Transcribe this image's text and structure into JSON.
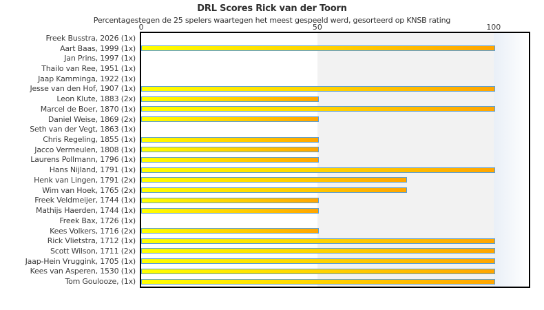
{
  "title": "DRL Scores Rick van der Toorn",
  "subtitle": "Percentagestegen de 25 spelers waartegen het meest gespeeld werd, gesorteerd op KNSB rating",
  "chart_data": {
    "type": "bar",
    "orientation": "horizontal",
    "title": "DRL Scores Rick van der Toorn",
    "subtitle": "Percentagestegen de 25 spelers waartegen het meest gespeeld werd, gesorteerd op KNSB rating",
    "xlabel": "",
    "ylabel": "",
    "xlim": [
      0,
      110
    ],
    "x_ticks": [
      0,
      50,
      100
    ],
    "grid": "off",
    "legend": "none",
    "categories": [
      "Freek Busstra, 2026 (1x)",
      "Aart Baas, 1999 (1x)",
      "Jan Prins, 1997 (1x)",
      "Thailo van Ree, 1951 (1x)",
      "Jaap Kamminga, 1922 (1x)",
      "Jesse van den Hof, 1907 (1x)",
      "Leon Klute, 1883 (2x)",
      "Marcel de Boer, 1870 (1x)",
      "Daniel Weise, 1869 (2x)",
      "Seth van der Vegt, 1863 (1x)",
      "Chris Regeling, 1855 (1x)",
      "Jacco Vermeulen, 1808 (1x)",
      "Laurens Pollmann, 1796 (1x)",
      "Hans Nijland, 1791 (1x)",
      "Henk van Lingen, 1791 (2x)",
      "Wim van Hoek, 1765 (2x)",
      "Freek Veldmeijer, 1744 (1x)",
      "Mathijs Haerden, 1744 (1x)",
      "Freek Bax, 1726 (1x)",
      "Kees Volkers, 1716 (2x)",
      "Rick Vlietstra, 1712 (1x)",
      "Scott Wilson, 1711 (2x)",
      "Jaap-Hein Vruggink, 1705 (1x)",
      "Kees van Asperen, 1530 (1x)",
      "Tom Goulooze,  (1x)"
    ],
    "values": [
      0,
      100,
      0,
      0,
      0,
      100,
      50,
      100,
      50,
      0,
      50,
      50,
      50,
      100,
      75,
      75,
      50,
      50,
      0,
      50,
      100,
      100,
      100,
      100,
      100
    ],
    "bar_gradient": [
      "#ffff00",
      "#ffd400",
      "#ffa500"
    ],
    "bar_border_color": "#5b9fd6",
    "bands": [
      {
        "from": 50,
        "to": 100,
        "type": "solid",
        "color": "#f2f2f2"
      },
      {
        "from": 100,
        "to": 110,
        "type": "gradient",
        "colors": [
          "#e9eff7",
          "#ffffff"
        ]
      }
    ],
    "plot_border_color": "#000000",
    "background_color": "#ffffff"
  }
}
